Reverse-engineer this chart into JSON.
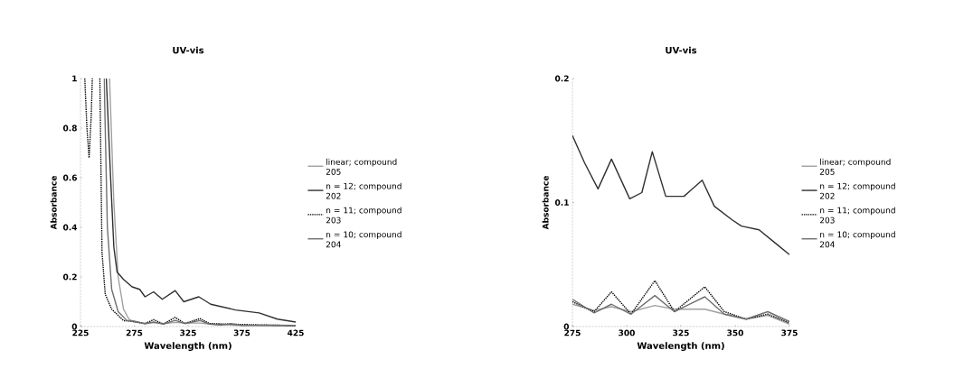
{
  "chart_data": [
    {
      "type": "line",
      "title": "UV-vis",
      "xlabel": "Wavelength (nm)",
      "ylabel": "Absorbance",
      "xlim": [
        225,
        425
      ],
      "ylim": [
        0,
        1
      ],
      "xticks": [
        225,
        275,
        325,
        375,
        425
      ],
      "yticks": [
        0,
        0.2,
        0.4,
        0.6,
        0.8,
        1
      ],
      "legend": "right",
      "series": [
        {
          "name": "linear; compound 205",
          "color": "#a0a0a0",
          "line_style": "solid",
          "x": [
            252,
            256,
            260,
            265,
            270,
            275,
            285,
            293,
            302,
            313,
            322,
            336,
            345,
            360,
            375,
            400,
            425
          ],
          "values": [
            1.0,
            0.5,
            0.2,
            0.07,
            0.03,
            0.018,
            0.013,
            0.016,
            0.012,
            0.017,
            0.014,
            0.014,
            0.01,
            0.007,
            0.004,
            0.003,
            0.002
          ]
        },
        {
          "name": "n = 12; compound 202",
          "color": "#303030",
          "line_style": "solid",
          "x": [
            249,
            253,
            256,
            259,
            265,
            273,
            280,
            285,
            293,
            301,
            313,
            321,
            335,
            346,
            369,
            391,
            408,
            425
          ],
          "values": [
            1.0,
            0.6,
            0.32,
            0.22,
            0.19,
            0.16,
            0.15,
            0.12,
            0.14,
            0.11,
            0.145,
            0.1,
            0.12,
            0.09,
            0.067,
            0.055,
            0.03,
            0.018
          ]
        },
        {
          "name": "n = 11; compound 203",
          "color": "#000000",
          "line_style": "dotted",
          "x": [
            229,
            231,
            233,
            235,
            236,
            239,
            243,
            245,
            248,
            254,
            265,
            275,
            285,
            293,
            302,
            313,
            322,
            336,
            345,
            360,
            400,
            425
          ],
          "values": [
            1.0,
            0.8,
            0.68,
            0.85,
            1.0,
            null,
            1.0,
            0.3,
            0.13,
            0.07,
            0.024,
            0.02,
            0.012,
            0.028,
            0.01,
            0.037,
            0.012,
            0.032,
            0.012,
            0.01,
            0.006,
            0.004
          ]
        },
        {
          "name": "n = 10; compound 204",
          "color": "#707070",
          "line_style": "solid",
          "x": [
            247,
            250,
            254,
            260,
            268,
            275,
            285,
            293,
            302,
            313,
            322,
            336,
            345,
            355,
            365,
            375,
            400,
            425
          ],
          "values": [
            1.0,
            0.4,
            0.15,
            0.06,
            0.025,
            0.022,
            0.011,
            0.018,
            0.01,
            0.025,
            0.012,
            0.024,
            0.01,
            0.006,
            0.012,
            0.004,
            0.006,
            0.005
          ]
        }
      ]
    },
    {
      "type": "line",
      "title": "UV-vis",
      "xlabel": "Wavelength (nm)",
      "ylabel": "Absorbance",
      "xlim": [
        275,
        375
      ],
      "ylim": [
        0,
        0.2
      ],
      "xticks": [
        275,
        300,
        325,
        350,
        375
      ],
      "yticks": [
        0,
        0.1,
        0.2
      ],
      "legend": "right",
      "series": [
        {
          "name": "linear; compound 205",
          "color": "#a0a0a0",
          "line_style": "solid",
          "x": [
            275,
            285,
            293,
            302,
            313,
            322,
            336,
            345,
            355,
            365,
            375
          ],
          "values": [
            0.018,
            0.013,
            0.016,
            0.012,
            0.017,
            0.014,
            0.014,
            0.01,
            0.006,
            0.009,
            0.002
          ]
        },
        {
          "name": "n = 12; compound 202",
          "color": "#303030",
          "line_style": "solid",
          "x": [
            275,
            280.6,
            286.8,
            293,
            301.4,
            307,
            311.8,
            318,
            326.4,
            334.8,
            340.4,
            348.6,
            352.9,
            361,
            368.7,
            375
          ],
          "values": [
            0.154,
            0.132,
            0.111,
            0.135,
            0.103,
            0.108,
            0.141,
            0.105,
            0.105,
            0.118,
            0.097,
            0.086,
            0.081,
            0.078,
            0.067,
            0.058
          ]
        },
        {
          "name": "n = 11; compound 203",
          "color": "#000000",
          "line_style": "dotted",
          "x": [
            275,
            285,
            293,
            302,
            313,
            322,
            336,
            345,
            355,
            365,
            375
          ],
          "values": [
            0.02,
            0.012,
            0.028,
            0.01,
            0.037,
            0.012,
            0.032,
            0.012,
            0.006,
            0.01,
            0.003
          ]
        },
        {
          "name": "n = 10; compound 204",
          "color": "#707070",
          "line_style": "solid",
          "x": [
            275,
            285,
            293,
            302,
            313,
            322,
            336,
            345,
            355,
            365,
            375
          ],
          "values": [
            0.022,
            0.011,
            0.018,
            0.01,
            0.025,
            0.012,
            0.024,
            0.01,
            0.006,
            0.012,
            0.004
          ]
        }
      ]
    }
  ]
}
